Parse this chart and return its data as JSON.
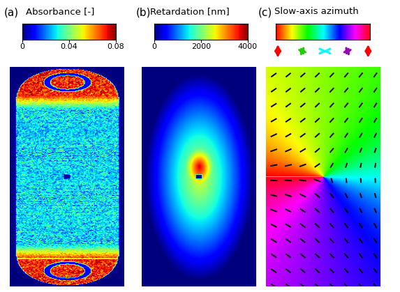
{
  "fig_width": 5.73,
  "fig_height": 4.19,
  "dpi": 100,
  "panel_a": {
    "label": "(a)",
    "title": "Absorbance [-]",
    "cbar_ticks_labels": [
      "0",
      "0.04",
      "0.08"
    ],
    "vmin": 0.0,
    "vmax": 0.08,
    "colormap": "jet"
  },
  "panel_b": {
    "label": "(b)",
    "title": "Retardation [nm]",
    "cbar_ticks_labels": [
      "0",
      "2000",
      "4000"
    ],
    "vmin": 0,
    "vmax": 4000,
    "colormap": "jet"
  },
  "panel_c": {
    "label": "(c)",
    "title": "Slow-axis azimuth",
    "colormap": "hsv"
  },
  "background_color": "white",
  "label_fontsize": 11,
  "title_fontsize": 9.5,
  "cbar_tick_fontsize": 8
}
